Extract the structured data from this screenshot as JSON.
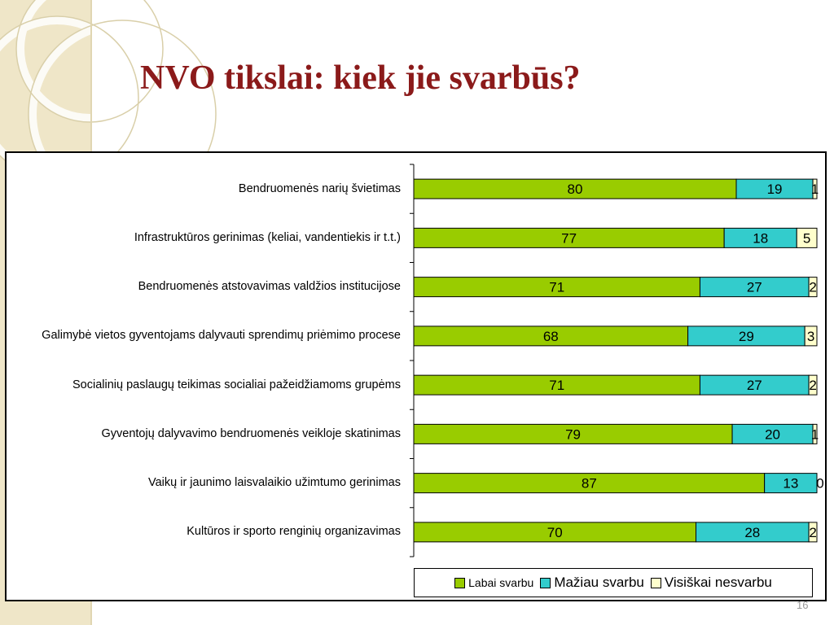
{
  "slide": {
    "title": "NVO tikslai: kiek jie svarbūs?",
    "page_number": "16"
  },
  "colors": {
    "labai": "#99cc00",
    "maziau": "#33cccc",
    "visiskai": "#ffffcc",
    "title": "#8b1a1a"
  },
  "chart_data": {
    "type": "bar",
    "orientation": "horizontal",
    "stacked": "percent",
    "categories": [
      "Bendruomenės narių švietimas",
      "Infrastruktūros gerinimas (keliai, vandentiekis ir t.t.)",
      "Bendruomenės atstovavimas valdžios institucijose",
      "Galimybė vietos gyventojams dalyvauti sprendimų priėmimo procese",
      "Socialinių paslaugų teikimas socialiai pažeidžiamoms grupėms",
      "Gyventojų dalyvavimo bendruomenės veikloje skatinimas",
      "Vaikų ir jaunimo laisvalaikio užimtumo gerinimas",
      "Kultūros ir sporto renginių organizavimas"
    ],
    "series": [
      {
        "name": "Labai svarbu",
        "values": [
          80,
          77,
          71,
          68,
          71,
          79,
          87,
          70
        ]
      },
      {
        "name": "Mažiau svarbu",
        "values": [
          19,
          18,
          27,
          29,
          27,
          20,
          13,
          28
        ]
      },
      {
        "name": "Visiškai nesvarbu",
        "values": [
          1,
          5,
          2,
          3,
          2,
          1,
          0,
          2
        ]
      }
    ],
    "xlim": [
      0,
      100
    ],
    "legend_position": "bottom"
  }
}
